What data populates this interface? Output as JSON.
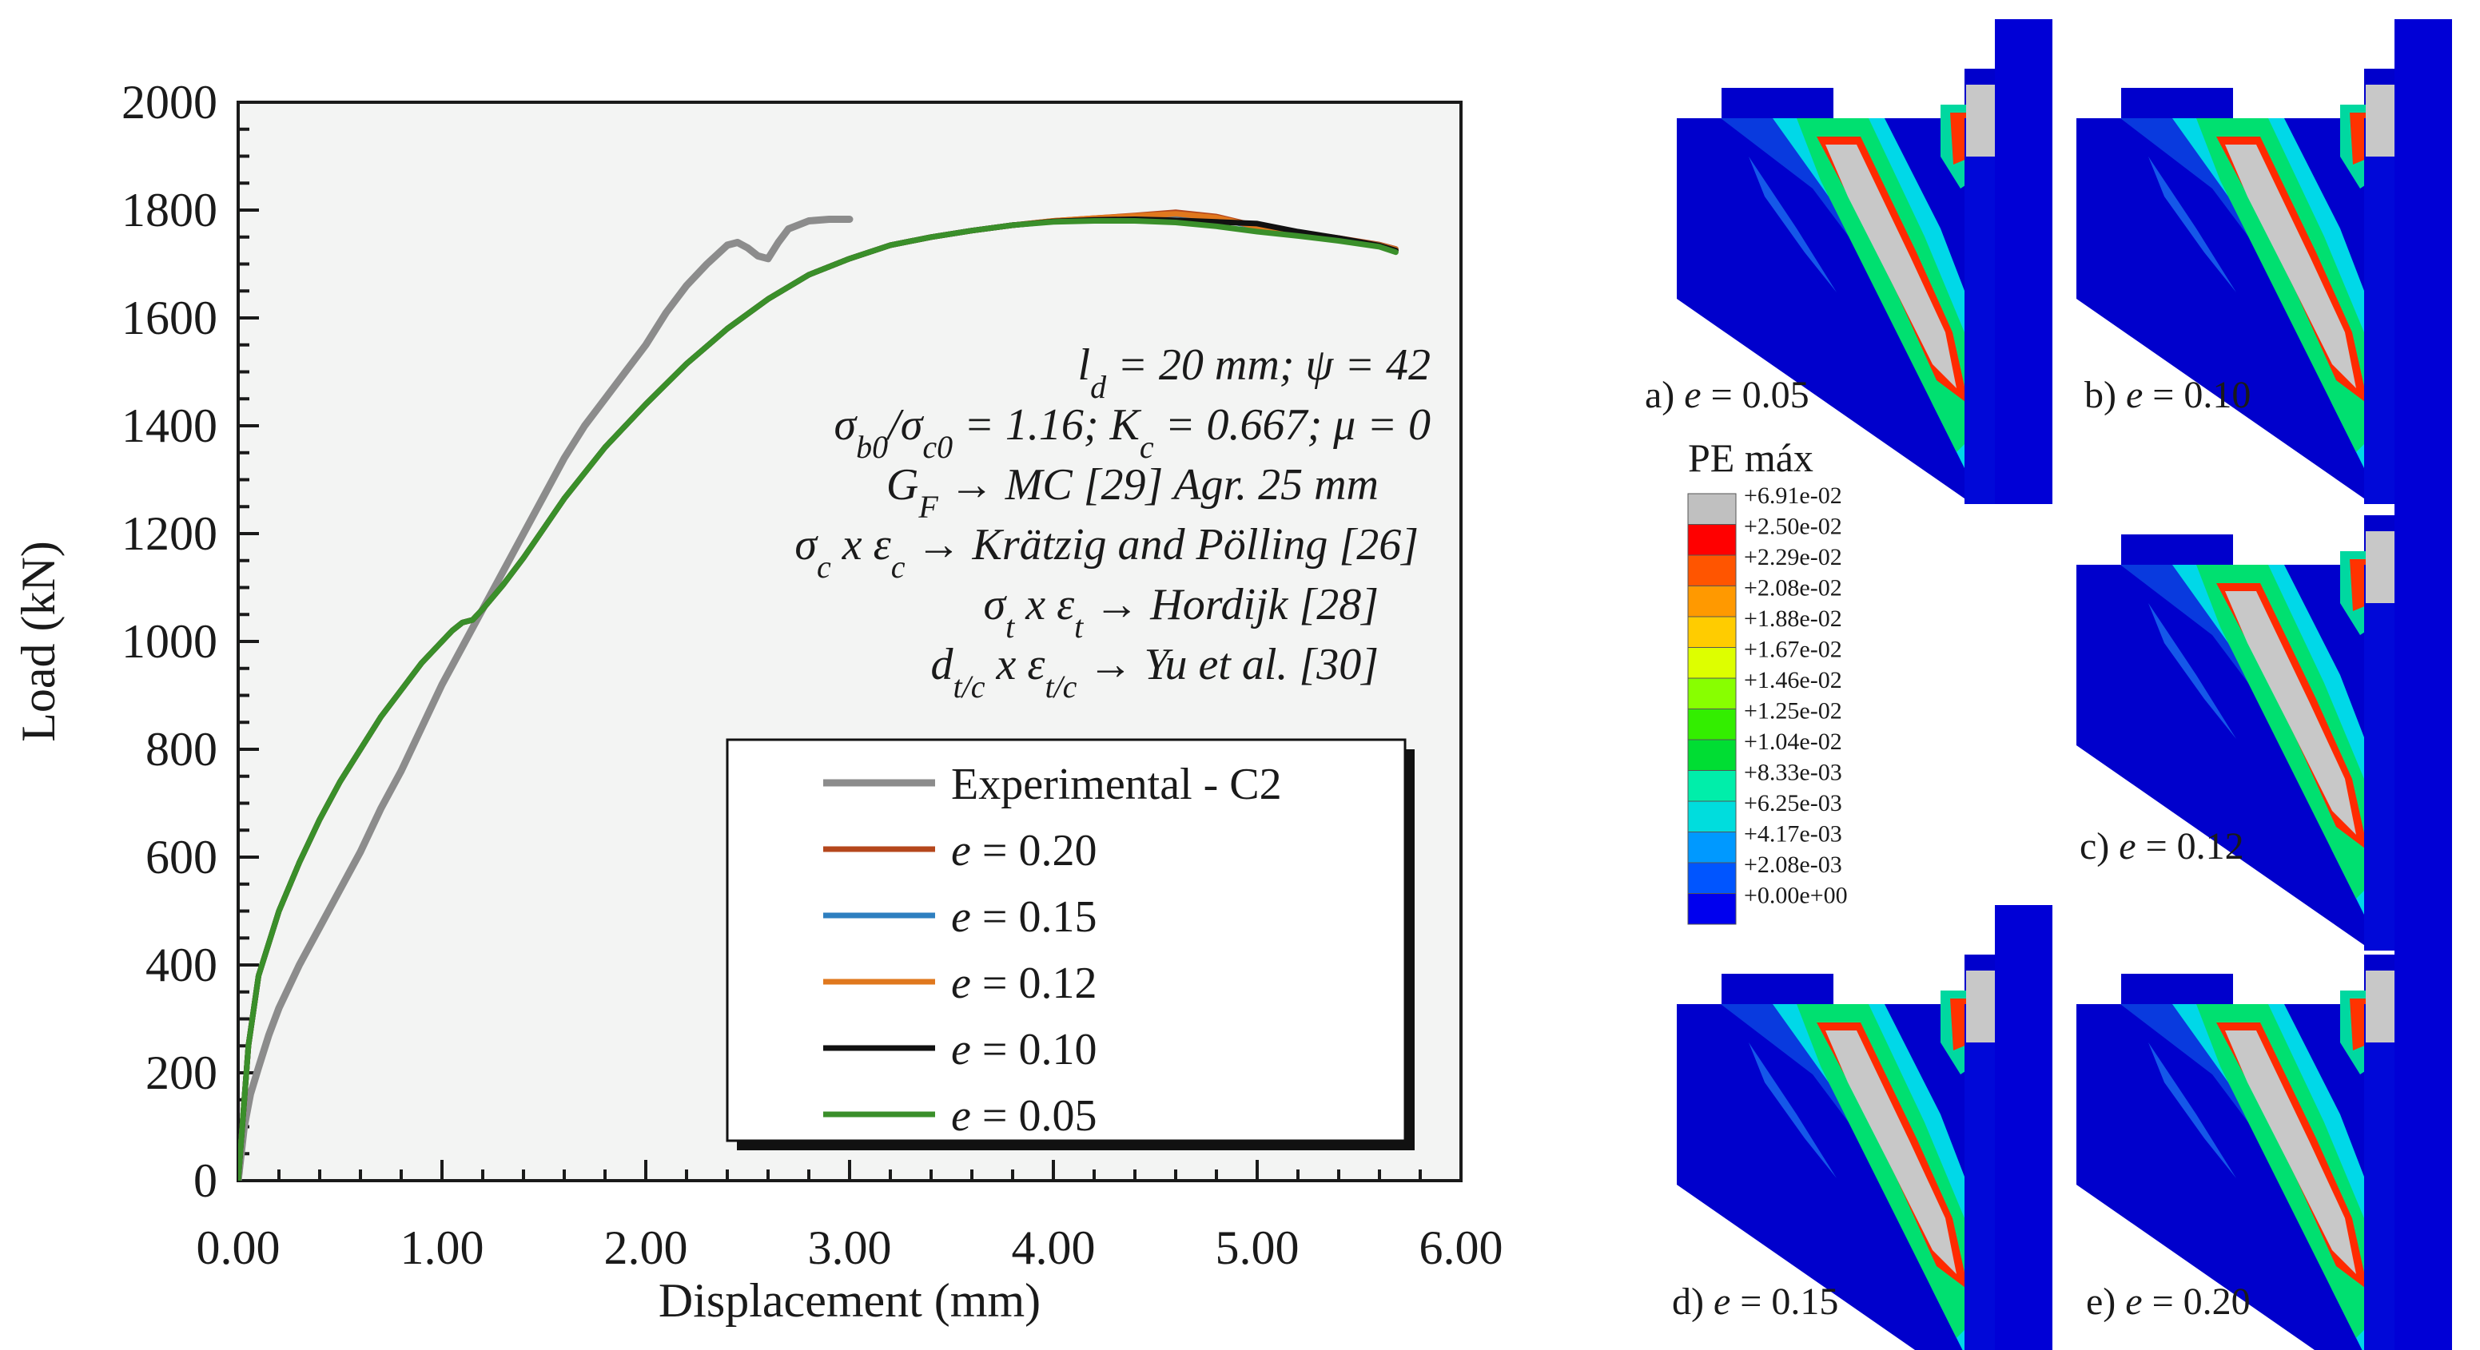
{
  "chart_data": {
    "type": "line",
    "xlabel": "Displacement (mm)",
    "ylabel": "Load (kN)",
    "xlim": [
      0,
      6
    ],
    "ylim": [
      0,
      2000
    ],
    "xticks": [
      "0.00",
      "1.00",
      "2.00",
      "3.00",
      "4.00",
      "5.00",
      "6.00"
    ],
    "yticks": [
      "0",
      "200",
      "400",
      "600",
      "800",
      "1000",
      "1200",
      "1400",
      "1600",
      "1800",
      "2000"
    ],
    "series": [
      {
        "name": "Experimental - C2",
        "color": "#8c8c8c",
        "x": [
          0,
          0.03,
          0.06,
          0.1,
          0.15,
          0.2,
          0.3,
          0.4,
          0.5,
          0.6,
          0.7,
          0.8,
          0.9,
          1.0,
          1.1,
          1.2,
          1.3,
          1.4,
          1.5,
          1.6,
          1.7,
          1.8,
          1.9,
          2.0,
          2.1,
          2.2,
          2.3,
          2.4,
          2.45,
          2.5,
          2.55,
          2.6,
          2.65,
          2.7,
          2.8,
          2.9,
          3.0
        ],
        "y": [
          0,
          100,
          160,
          210,
          270,
          320,
          400,
          470,
          540,
          610,
          690,
          760,
          840,
          920,
          990,
          1060,
          1130,
          1200,
          1270,
          1340,
          1400,
          1450,
          1500,
          1550,
          1610,
          1660,
          1700,
          1735,
          1740,
          1730,
          1715,
          1710,
          1740,
          1765,
          1780,
          1783,
          1783
        ]
      },
      {
        "name": "e = 0.20",
        "color": "#b5471c",
        "x": [
          0,
          0.05,
          0.1,
          0.2,
          0.3,
          0.4,
          0.5,
          0.6,
          0.7,
          0.8,
          0.9,
          1.0,
          1.05,
          1.1,
          1.15,
          1.2,
          1.3,
          1.4,
          1.5,
          1.6,
          1.8,
          2.0,
          2.2,
          2.4,
          2.6,
          2.8,
          3.0,
          3.2,
          3.4,
          3.6,
          3.8,
          4.0,
          4.2,
          4.4,
          4.6,
          4.8,
          5.0,
          5.2,
          5.4,
          5.6,
          5.68
        ],
        "y": [
          0,
          250,
          380,
          500,
          590,
          670,
          740,
          800,
          860,
          910,
          960,
          1000,
          1020,
          1035,
          1040,
          1060,
          1105,
          1155,
          1210,
          1265,
          1360,
          1440,
          1515,
          1580,
          1635,
          1680,
          1710,
          1735,
          1750,
          1762,
          1772,
          1780,
          1785,
          1790,
          1796,
          1788,
          1770,
          1758,
          1748,
          1736,
          1728
        ]
      },
      {
        "name": "e = 0.15",
        "color": "#2e7fc0",
        "x": [
          0,
          0.05,
          0.1,
          0.2,
          0.3,
          0.4,
          0.5,
          0.6,
          0.7,
          0.8,
          0.9,
          1.0,
          1.05,
          1.1,
          1.15,
          1.2,
          1.3,
          1.4,
          1.5,
          1.6,
          1.8,
          2.0,
          2.2,
          2.4,
          2.6,
          2.8,
          3.0,
          3.2,
          3.4,
          3.6,
          3.8,
          4.0,
          4.2,
          4.4,
          4.6,
          4.8,
          5.0,
          5.2,
          5.4,
          5.6,
          5.68
        ],
        "y": [
          0,
          250,
          380,
          500,
          590,
          670,
          740,
          800,
          860,
          910,
          960,
          1000,
          1020,
          1035,
          1040,
          1060,
          1105,
          1155,
          1210,
          1265,
          1360,
          1440,
          1515,
          1580,
          1635,
          1680,
          1710,
          1735,
          1750,
          1762,
          1772,
          1779,
          1784,
          1788,
          1792,
          1785,
          1768,
          1756,
          1746,
          1735,
          1727
        ]
      },
      {
        "name": "e = 0.12",
        "color": "#e0781e",
        "x": [
          0,
          0.05,
          0.1,
          0.2,
          0.3,
          0.4,
          0.5,
          0.6,
          0.7,
          0.8,
          0.9,
          1.0,
          1.05,
          1.1,
          1.15,
          1.2,
          1.3,
          1.4,
          1.5,
          1.6,
          1.8,
          2.0,
          2.2,
          2.4,
          2.6,
          2.8,
          3.0,
          3.2,
          3.4,
          3.6,
          3.8,
          4.0,
          4.2,
          4.4,
          4.6,
          4.8,
          5.0,
          5.2,
          5.4,
          5.6,
          5.68
        ],
        "y": [
          0,
          250,
          380,
          500,
          590,
          670,
          740,
          800,
          860,
          910,
          960,
          1000,
          1020,
          1035,
          1040,
          1060,
          1105,
          1155,
          1210,
          1265,
          1360,
          1440,
          1515,
          1580,
          1635,
          1680,
          1710,
          1735,
          1750,
          1762,
          1772,
          1780,
          1785,
          1789,
          1793,
          1786,
          1769,
          1757,
          1747,
          1735,
          1727
        ]
      },
      {
        "name": "e = 0.10",
        "color": "#111111",
        "x": [
          0,
          0.05,
          0.1,
          0.2,
          0.3,
          0.4,
          0.5,
          0.6,
          0.7,
          0.8,
          0.9,
          1.0,
          1.05,
          1.1,
          1.15,
          1.2,
          1.3,
          1.4,
          1.5,
          1.6,
          1.8,
          2.0,
          2.2,
          2.4,
          2.6,
          2.8,
          3.0,
          3.2,
          3.4,
          3.6,
          3.8,
          4.0,
          4.2,
          4.4,
          4.6,
          4.8,
          5.0,
          5.2,
          5.4,
          5.6,
          5.68
        ],
        "y": [
          0,
          250,
          380,
          500,
          590,
          670,
          740,
          800,
          860,
          910,
          960,
          1000,
          1020,
          1035,
          1040,
          1060,
          1105,
          1155,
          1210,
          1265,
          1360,
          1440,
          1515,
          1580,
          1635,
          1680,
          1710,
          1735,
          1750,
          1762,
          1772,
          1779,
          1782,
          1783,
          1781,
          1778,
          1775,
          1760,
          1748,
          1734,
          1725
        ]
      },
      {
        "name": "e = 0.05",
        "color": "#3a8f2a",
        "x": [
          0,
          0.05,
          0.1,
          0.2,
          0.3,
          0.4,
          0.5,
          0.6,
          0.7,
          0.8,
          0.9,
          1.0,
          1.05,
          1.1,
          1.15,
          1.2,
          1.3,
          1.4,
          1.5,
          1.6,
          1.8,
          2.0,
          2.2,
          2.4,
          2.6,
          2.8,
          3.0,
          3.2,
          3.4,
          3.6,
          3.8,
          4.0,
          4.2,
          4.4,
          4.6,
          4.8,
          5.0,
          5.2,
          5.4,
          5.6,
          5.68
        ],
        "y": [
          0,
          250,
          380,
          500,
          590,
          670,
          740,
          800,
          860,
          910,
          960,
          1000,
          1020,
          1035,
          1040,
          1060,
          1105,
          1155,
          1210,
          1265,
          1360,
          1440,
          1515,
          1580,
          1635,
          1680,
          1710,
          1735,
          1750,
          1762,
          1772,
          1778,
          1780,
          1780,
          1777,
          1770,
          1760,
          1752,
          1743,
          1732,
          1722
        ]
      }
    ],
    "annotations": [
      {
        "base": "l",
        "sub": "d",
        "rest": " = 20 mm; ψ = 42"
      },
      {
        "base": "σ",
        "sub": "b0",
        "rest": "/σ",
        "sub2": "c0",
        "rest2": " = 1.16; K",
        "sub3": "c",
        "rest3": " = 0.667; μ = 0"
      },
      {
        "base": "G",
        "sub": "F",
        "rest": " → MC [29] Agr. 25 mm"
      },
      {
        "base": "σ",
        "sub": "c",
        "rest": " x ε",
        "sub2": "c",
        "rest2": " → Krätzig and Pölling [26]"
      },
      {
        "base": "σ",
        "sub": "t",
        "rest": " x ε",
        "sub2": "t",
        "rest2": " → Hordijk [28]"
      },
      {
        "base": "d",
        "sub": "t/c",
        "rest": " x ε",
        "sub2": "t/c",
        "rest2": " → Yu et al. [30]"
      }
    ]
  },
  "fem_panels": {
    "legend_title": "PE máx",
    "legend_values": [
      "+6.91e-02",
      "+2.50e-02",
      "+2.29e-02",
      "+2.08e-02",
      "+1.88e-02",
      "+1.67e-02",
      "+1.46e-02",
      "+1.25e-02",
      "+1.04e-02",
      "+8.33e-03",
      "+6.25e-03",
      "+4.17e-03",
      "+2.08e-03",
      "+0.00e+00"
    ],
    "legend_colors": [
      "#c0c0c0",
      "#ff0000",
      "#ff5500",
      "#ff9900",
      "#ffcc00",
      "#ddff00",
      "#88ff00",
      "#33ee00",
      "#00dd33",
      "#00eeaa",
      "#00dddd",
      "#0099ff",
      "#0055ff",
      "#0000ee"
    ],
    "panels": [
      {
        "prefix": "a) ",
        "var": "e",
        "value": " = 0.05"
      },
      {
        "prefix": "b) ",
        "var": "e",
        "value": " = 0.10"
      },
      {
        "prefix": "c) ",
        "var": "e",
        "value": " = 0.12"
      },
      {
        "prefix": "d) ",
        "var": "e",
        "value": " = 0.15"
      },
      {
        "prefix": "e) ",
        "var": "e",
        "value": " = 0.20"
      }
    ]
  }
}
